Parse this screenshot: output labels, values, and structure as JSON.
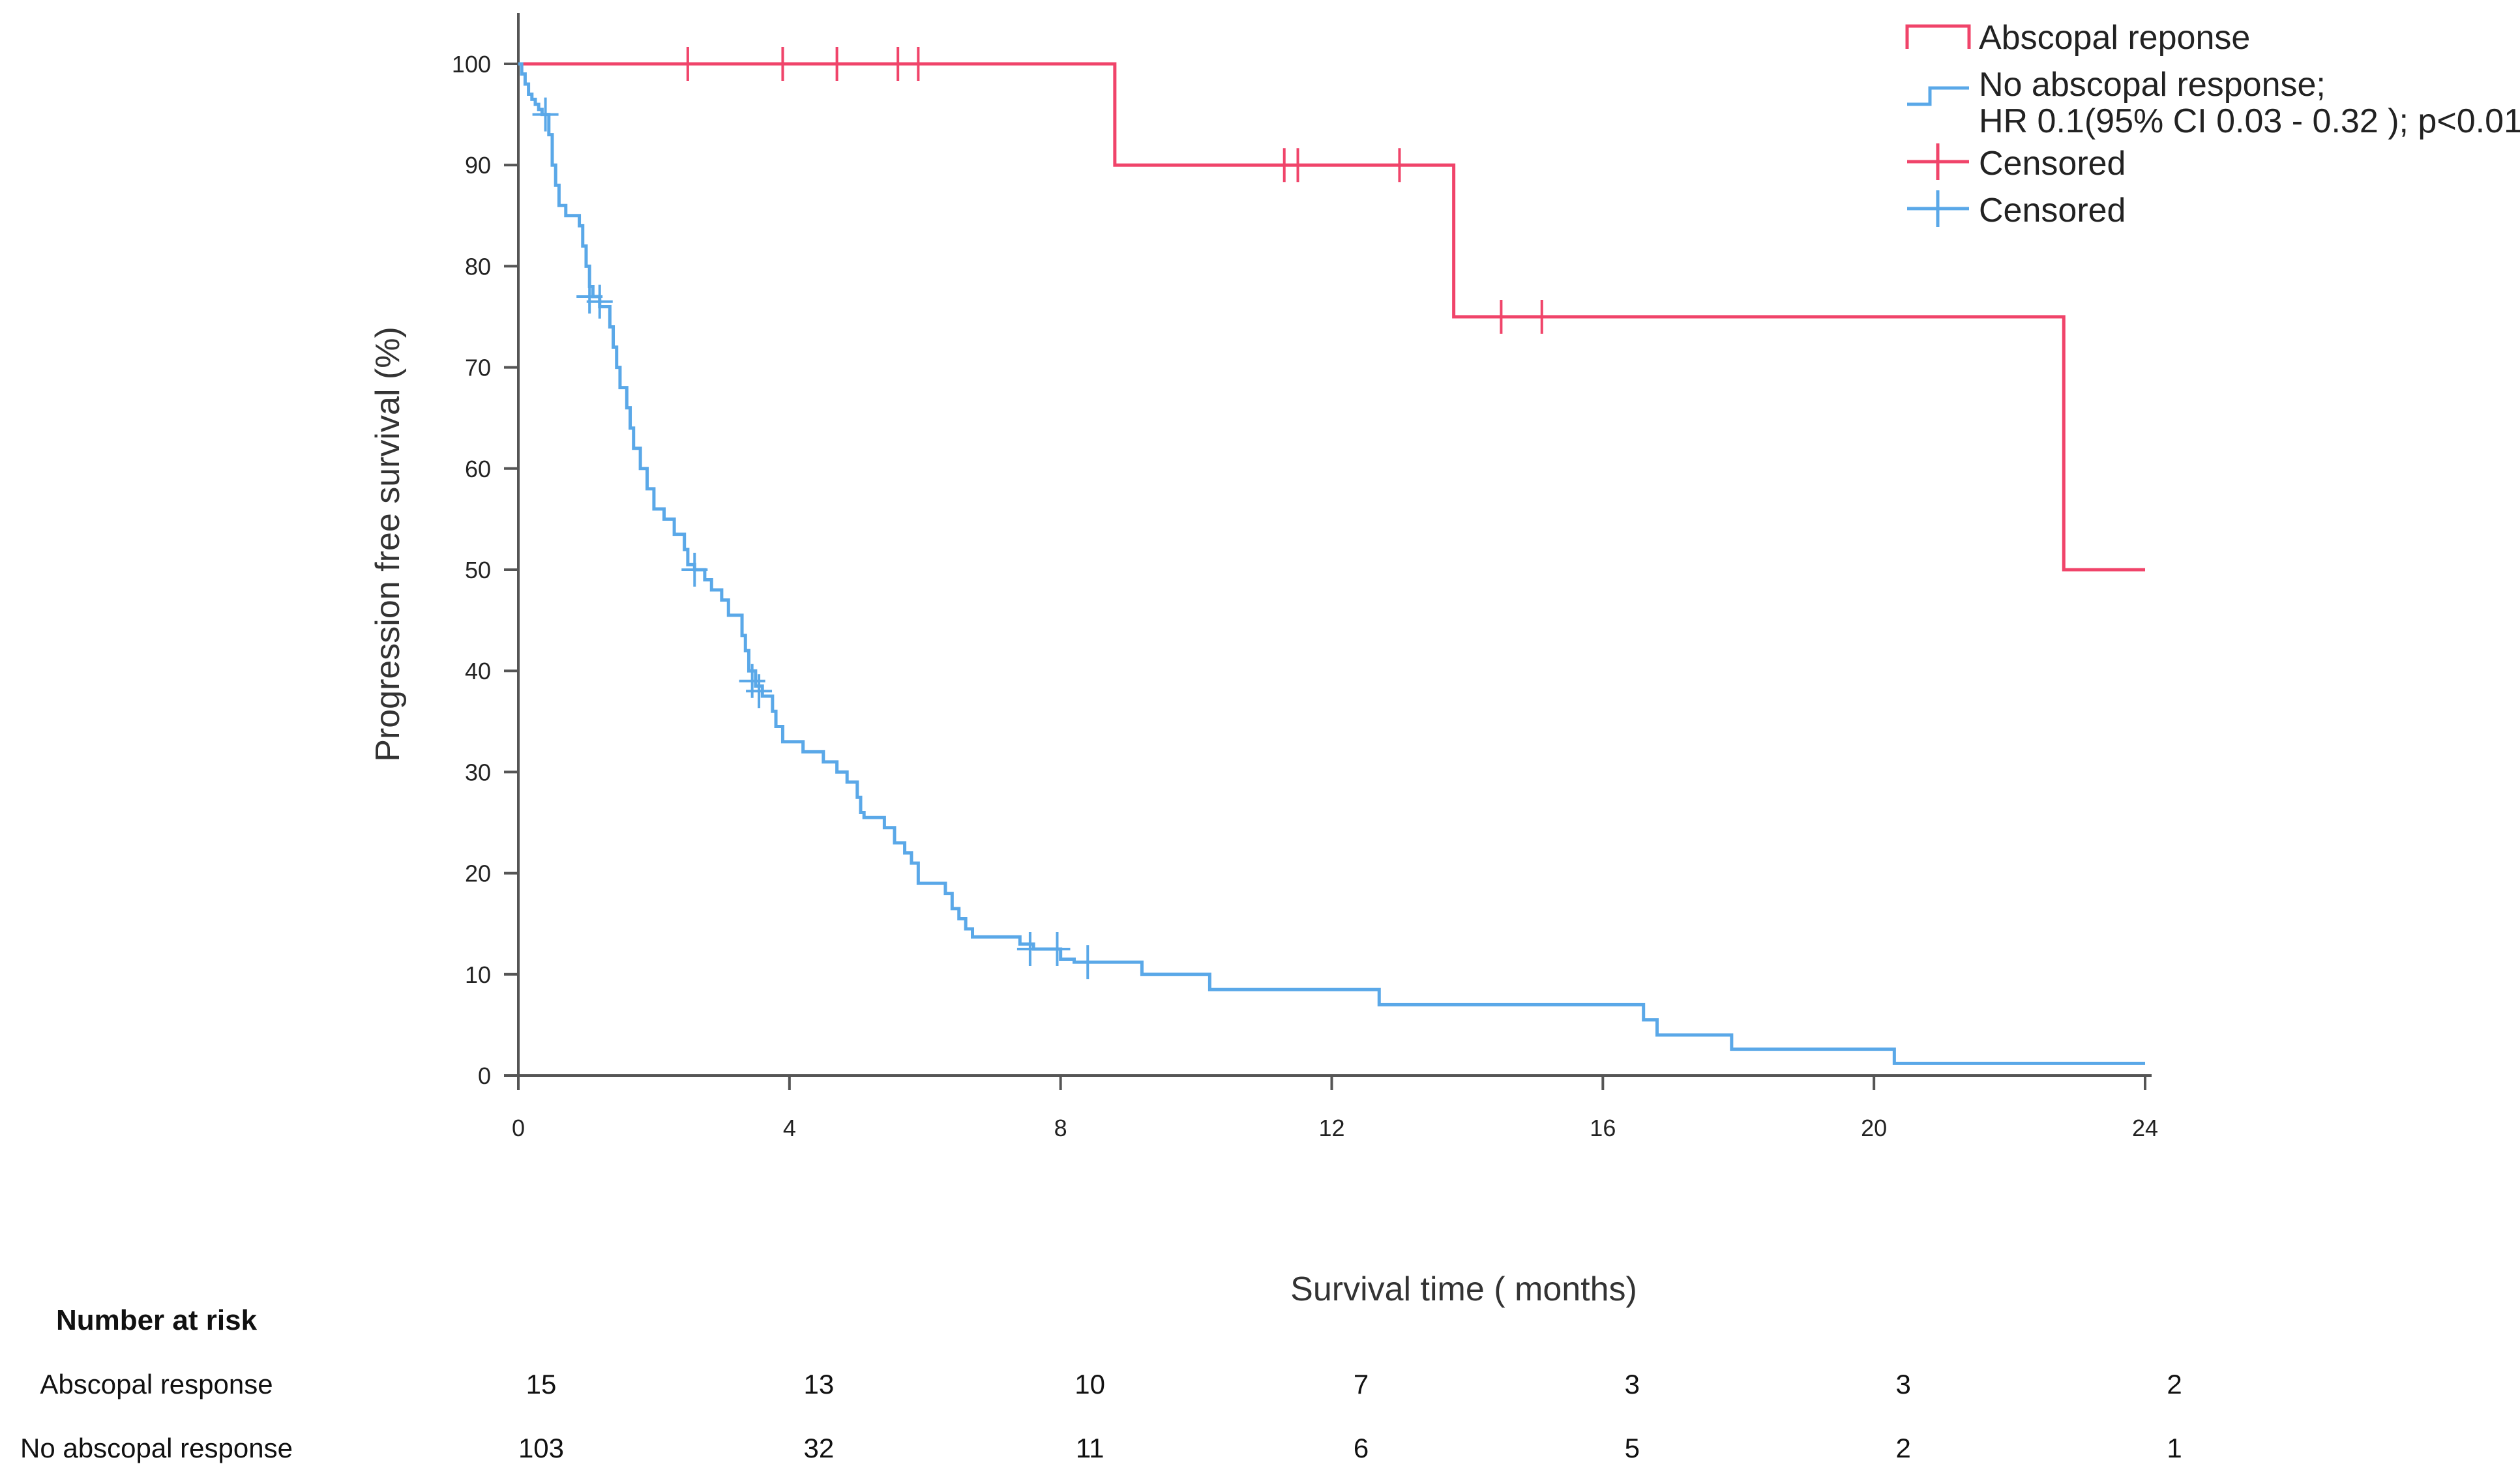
{
  "chart_data": {
    "type": "line",
    "subtype": "kaplan-meier",
    "ylabel": "Progression free survival (%)",
    "xlabel": "Survival time ( months)",
    "xlim": [
      0,
      24
    ],
    "ylim": [
      0,
      100
    ],
    "xticks": [
      0,
      4,
      8,
      12,
      16,
      20,
      24
    ],
    "yticks": [
      0,
      10,
      20,
      30,
      40,
      50,
      60,
      70,
      80,
      90,
      100
    ],
    "grid": false,
    "legend_position": "top-right",
    "legend": [
      {
        "key": "abscopal",
        "label": "Abscopal reponse",
        "color": "#f0446a",
        "kind": "line"
      },
      {
        "key": "noabscopal",
        "label": "No abscopal response;",
        "label2": "HR 0.1(95% CI 0.03 - 0.32 ); p<0.01",
        "color": "#5aa8e8",
        "kind": "line"
      },
      {
        "key": "cens_abscopal",
        "label": "Censored",
        "color": "#f0446a",
        "kind": "marker"
      },
      {
        "key": "cens_noabscopal",
        "label": "Censored",
        "color": "#5aa8e8",
        "kind": "marker"
      }
    ],
    "series": [
      {
        "name": "Abscopal reponse",
        "color": "#f0446a",
        "steps": [
          [
            0,
            100
          ],
          [
            8.8,
            90
          ],
          [
            13.8,
            75
          ],
          [
            22.8,
            50
          ]
        ],
        "end_x": 24,
        "censored": [
          [
            2.5,
            100
          ],
          [
            3.9,
            100
          ],
          [
            4.7,
            100
          ],
          [
            5.6,
            100
          ],
          [
            5.9,
            100
          ],
          [
            11.3,
            90
          ],
          [
            11.5,
            90
          ],
          [
            13.0,
            90
          ],
          [
            14.5,
            75
          ],
          [
            15.1,
            75
          ]
        ]
      },
      {
        "name": "No abscopal response",
        "color": "#5aa8e8",
        "steps": [
          [
            0,
            100
          ],
          [
            0.05,
            99
          ],
          [
            0.1,
            98
          ],
          [
            0.15,
            97
          ],
          [
            0.2,
            96.5
          ],
          [
            0.25,
            96
          ],
          [
            0.3,
            95.5
          ],
          [
            0.35,
            95
          ],
          [
            0.45,
            93
          ],
          [
            0.5,
            90
          ],
          [
            0.55,
            88
          ],
          [
            0.6,
            86
          ],
          [
            0.7,
            85
          ],
          [
            0.9,
            84
          ],
          [
            0.95,
            82
          ],
          [
            1.0,
            80
          ],
          [
            1.05,
            78
          ],
          [
            1.1,
            77
          ],
          [
            1.2,
            76
          ],
          [
            1.35,
            74
          ],
          [
            1.4,
            72
          ],
          [
            1.45,
            70
          ],
          [
            1.5,
            68
          ],
          [
            1.6,
            66
          ],
          [
            1.65,
            64
          ],
          [
            1.7,
            62
          ],
          [
            1.8,
            60
          ],
          [
            1.9,
            58
          ],
          [
            2.0,
            56
          ],
          [
            2.15,
            55
          ],
          [
            2.3,
            53.5
          ],
          [
            2.45,
            52
          ],
          [
            2.5,
            50.5
          ],
          [
            2.6,
            50
          ],
          [
            2.75,
            49
          ],
          [
            2.85,
            48
          ],
          [
            3.0,
            47
          ],
          [
            3.1,
            45.5
          ],
          [
            3.3,
            43.5
          ],
          [
            3.35,
            42
          ],
          [
            3.4,
            40
          ],
          [
            3.5,
            38.5
          ],
          [
            3.6,
            37.5
          ],
          [
            3.75,
            36
          ],
          [
            3.8,
            34.5
          ],
          [
            3.9,
            33
          ],
          [
            4.2,
            32
          ],
          [
            4.5,
            31
          ],
          [
            4.7,
            30
          ],
          [
            4.85,
            29
          ],
          [
            5.0,
            27.5
          ],
          [
            5.05,
            26
          ],
          [
            5.1,
            25.5
          ],
          [
            5.4,
            24.5
          ],
          [
            5.55,
            23
          ],
          [
            5.7,
            22
          ],
          [
            5.8,
            21
          ],
          [
            5.9,
            19
          ],
          [
            6.3,
            18
          ],
          [
            6.4,
            16.5
          ],
          [
            6.5,
            15.5
          ],
          [
            6.6,
            14.5
          ],
          [
            6.7,
            13.7
          ],
          [
            7.4,
            13
          ],
          [
            7.6,
            12.5
          ],
          [
            8.0,
            11.5
          ],
          [
            8.2,
            11.2
          ],
          [
            9.2,
            10
          ],
          [
            10.2,
            8.5
          ],
          [
            12.7,
            7
          ],
          [
            16.6,
            5.5
          ],
          [
            16.8,
            4
          ],
          [
            17.9,
            2.6
          ],
          [
            20.3,
            1.2
          ]
        ],
        "end_x": 24,
        "censored": [
          [
            0.4,
            95
          ],
          [
            1.05,
            77
          ],
          [
            1.2,
            76.5
          ],
          [
            2.6,
            50
          ],
          [
            3.45,
            39
          ],
          [
            3.55,
            38
          ],
          [
            7.55,
            12.5
          ],
          [
            7.95,
            12.5
          ],
          [
            8.4,
            11.2
          ]
        ]
      }
    ],
    "risk_table": {
      "title": "Number at risk",
      "times": [
        0,
        4,
        8,
        12,
        16,
        20,
        24
      ],
      "rows": [
        {
          "label": "Abscopal response",
          "values": [
            15,
            13,
            10,
            7,
            3,
            3,
            2
          ]
        },
        {
          "label": "No abscopal response",
          "values": [
            103,
            32,
            11,
            6,
            5,
            2,
            1
          ]
        }
      ]
    }
  }
}
